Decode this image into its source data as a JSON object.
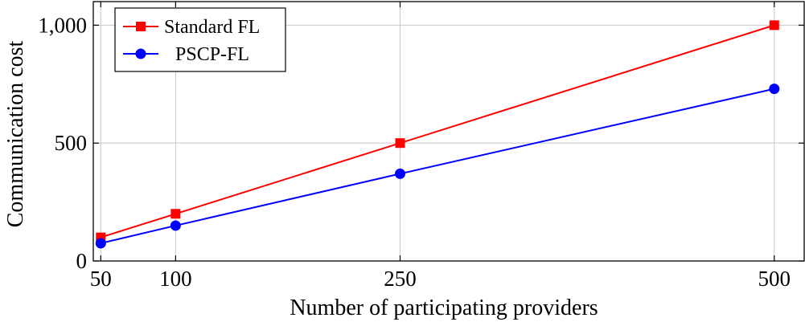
{
  "chart_data": {
    "type": "line",
    "title": "",
    "xlabel": "Number of participating providers",
    "ylabel": "Communication cost",
    "x": [
      50,
      100,
      250,
      500
    ],
    "x_ticks": [
      50,
      100,
      250,
      500
    ],
    "y_ticks": [
      0,
      500,
      1000
    ],
    "y_tick_labels": [
      "0",
      "500",
      "1,000"
    ],
    "xlim": [
      45,
      520
    ],
    "ylim": [
      0,
      1100
    ],
    "grid": true,
    "legend_position": "top-left",
    "series": [
      {
        "name": "Standard FL",
        "values": [
          100,
          200,
          500,
          1000
        ],
        "color": "#ff0000",
        "marker": "square"
      },
      {
        "name": "PSCP-FL",
        "values": [
          75,
          150,
          370,
          730
        ],
        "color": "#0000ff",
        "marker": "circle"
      }
    ]
  }
}
